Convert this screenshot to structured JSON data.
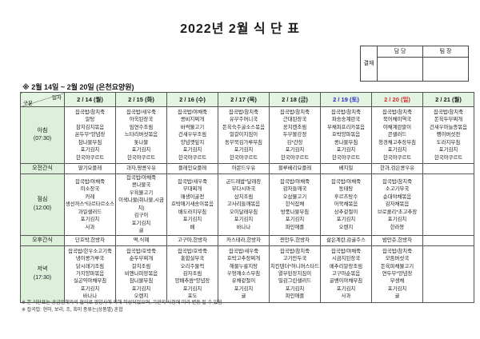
{
  "title": "2022년 2월 식 단 표",
  "approval": {
    "stamp_label": "결재",
    "columns": [
      "담 당",
      "팀 장"
    ]
  },
  "subtitle": "※ 2월 14일 ~ 2월 20일 (은천요양원)",
  "colors": {
    "header_bg": "#e4f4e2",
    "label_bg": "#dcf0da",
    "saturday_text": "#2929cc",
    "sunday_text": "#d42a2a",
    "border": "#555555",
    "text": "#1a1a1a"
  },
  "table": {
    "corner": {
      "top": "일자",
      "bottom": "구분"
    },
    "dates": [
      {
        "label": "2 / 14 (월)"
      },
      {
        "label": "2 / 15 (화)"
      },
      {
        "label": "2 / 16 (수)"
      },
      {
        "label": "2 / 17 (목)"
      },
      {
        "label": "2 / 18 (금)"
      },
      {
        "label": "2 / 19 (토)"
      },
      {
        "label": "2 / 20 (일)"
      },
      {
        "label": "2 / 21 (월)"
      }
    ],
    "row_labels": {
      "breakfast": [
        "아침",
        "(07:30)"
      ],
      "am_snack": [
        "오전간식"
      ],
      "lunch": [
        "점심",
        "(12:00)"
      ],
      "pm_snack": [
        "오후간식"
      ],
      "dinner": [
        "저녁",
        "(17:30)"
      ]
    }
  },
  "menu": {
    "breakfast": [
      [
        "잡곡밥/참치죽",
        "알탕",
        "참치김치볶음",
        "온두부*양념장",
        "참나물무침",
        "포기김치",
        "한국야쿠르트"
      ],
      [
        "잡곡밥/새우죽",
        "아욱된장국",
        "임연수조림",
        "느타리버섯볶음",
        "톳나물",
        "포기김치",
        "한국야쿠르트"
      ],
      [
        "잡곡밥/야채죽",
        "콩비지찌개",
        "바싹불고기",
        "건새우무조림",
        "양념깻잎지",
        "포기김치",
        "한국야쿠르트"
      ],
      [
        "잡곡밥/참치죽",
        "유부주머니국",
        "돈육숙주굴소스볶음",
        "얼갈이지짐이",
        "동부묵김가루무침",
        "포기김치",
        "한국야쿠르트"
      ],
      [
        "잡곡밥/참치죽",
        "근대된장국",
        "꽁치캔조림",
        "두부볼강정",
        "김*간장",
        "포기김치",
        "한국야쿠르트"
      ],
      [
        "잡곡밥/참치죽",
        "파송송계란국",
        "무채파프리카볶음",
        "호박양파볶음",
        "콩나물무침",
        "포기김치",
        "한국야쿠르트"
      ],
      [
        "잡곡밥/참치죽",
        "북어채미역국",
        "야채계란말이",
        "콘샐러드",
        "청경채고추장무침",
        "포기김치",
        "한국야쿠르트"
      ],
      [
        "잡곡밥/참치죽",
        "돈육두부찌개",
        "건새우마늘종볶음",
        "팽이버섯전",
        "도라지무침",
        "포기김치",
        "한국야쿠르트"
      ]
    ],
    "am_snack": [
      "딸기요플레",
      "과자,땅콩우유",
      "플레인요플레",
      "아몬드우유",
      "블루베리요플레",
      "베지밀",
      "한과,검은콩우유",
      ""
    ],
    "lunch": [
      [
        "잡곡밥/야채죽",
        "미소장국",
        "카레",
        "생선까스*타르타르소스",
        "과일샐러드",
        "포기김치",
        "사과"
      ],
      [
        "잡곡밥/야채죽",
        "콩나물국",
        "우육불고기",
        "이색나물(취나물,시금치)",
        "김구이",
        "포기김치",
        "귤"
      ],
      [
        "잡곡밥/새우죽",
        "부대찌개",
        "매생이굴전",
        "호박애기새송이볶음",
        "배도라지무침",
        "포기김치",
        "배"
      ],
      [
        "곤드레밥*달래장",
        "무다시마국",
        "삼치조림",
        "고사리들깨볶음",
        "오이달래무침",
        "포기김치",
        "바나나"
      ],
      [
        "잡곡밥/야채죽",
        "감자들깨국",
        "오삼불고기",
        "한식잡채",
        "방풍나물무침",
        "포기김치",
        "파인애플"
      ],
      [
        "잡곡밥/야채죽",
        "동태탕",
        "후르츠탕수",
        "어묵채볶음",
        "상추겉절이",
        "포기김치",
        "오렌지"
      ],
      [
        "잡곡밥/참치죽",
        "소고기무국",
        "순대야채볶음",
        "감자채볶음",
        "브로콜리*초고추장",
        "포기김치",
        "한라봉"
      ],
      []
    ],
    "pm_snack": [
      "단호박,한방차",
      "떡,식혜",
      "고구마,한방차",
      "카스테라,한방차",
      "찐만두,한방차",
      "삶은계란,감귤주스",
      "밤만쥬,한방차",
      ""
    ],
    "dinner": [
      [
        "잡곡밥/한우소고기죽",
        "냉이콩가루국",
        "닭시래기조림",
        "가지양파볶음",
        "실곤약야채무침",
        "포기김치",
        "바나나"
      ],
      [
        "잡곡밥/호박죽",
        "순두부찌개",
        "갈치조림",
        "비엔나피망볶음",
        "참나물무침",
        "포기김치",
        "오렌지"
      ],
      [
        "잡곡밥/호박죽",
        "홍합살무국",
        "오리주물럭",
        "감자조림",
        "양배추쌈*양념장",
        "포기김치",
        "포도"
      ],
      [
        "잡곡밥/새우죽",
        "호박고추장찌개",
        "해물누룽지탕",
        "우엉깨소스무침",
        "유채겉절이",
        "포기김치",
        "귤"
      ],
      [
        "잡곡밥/참치죽",
        "고기만두국",
        "치킨텐더*허니머스타드",
        "열무된장지짐이",
        "밀감그린샐러드",
        "포기김치",
        "파인애플"
      ],
      [
        "잡곡밥/야채죽",
        "시금치된장국",
        "메추리알장조림",
        "고구마순볶음",
        "골뱅이야채무침",
        "포기김치",
        "사과"
      ],
      [
        "잡곡밥/참치죽",
        "모둠버섯국",
        "돈육파채불고기",
        "연두부*양념장",
        "무생채",
        "포기김치",
        "귤"
      ],
      []
    ]
  },
  "notes": [
    "※ 본 식단표는 공급업체와의 협의로 영양사에 의해 작성되었으며, 기관의 사정에 따라 변동 될 수 있음",
    "※ 잡곡밥: 현미, 보리, 조, 흑미 종류는(상품별) 혼합"
  ]
}
